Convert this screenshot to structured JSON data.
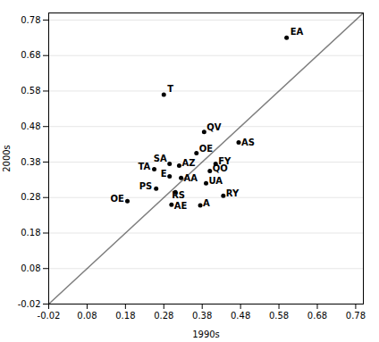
{
  "chart_data": {
    "type": "scatter",
    "xlabel": "1990s",
    "ylabel": "2000s",
    "x": [
      0.6,
      0.28,
      0.385,
      0.475,
      0.365,
      0.415,
      0.295,
      0.32,
      0.4,
      0.255,
      0.295,
      0.325,
      0.39,
      0.26,
      0.31,
      0.435,
      0.185,
      0.3,
      0.375
    ],
    "values": [
      0.73,
      0.57,
      0.465,
      0.435,
      0.405,
      0.375,
      0.375,
      0.37,
      0.355,
      0.36,
      0.34,
      0.335,
      0.32,
      0.305,
      0.295,
      0.285,
      0.27,
      0.26,
      0.258
    ],
    "labels": [
      "EA",
      "T",
      "QV",
      "AS",
      "OE",
      "FY",
      "SA",
      "AZ",
      "QO",
      "TA",
      "E",
      "AA",
      "UA",
      "PS",
      "RS",
      "RY",
      "OE",
      "AE",
      "A"
    ],
    "color": "black",
    "xlim": [
      -0.02,
      0.8
    ],
    "ylim": [
      -0.02,
      0.8
    ],
    "xticks": [
      -0.02,
      0.08,
      0.18,
      0.28,
      0.38,
      0.48,
      0.58,
      0.68,
      0.78
    ],
    "yticks": [
      -0.02,
      0.08,
      0.18,
      0.28,
      0.38,
      0.48,
      0.58,
      0.68,
      0.78
    ],
    "grid": "y"
  }
}
